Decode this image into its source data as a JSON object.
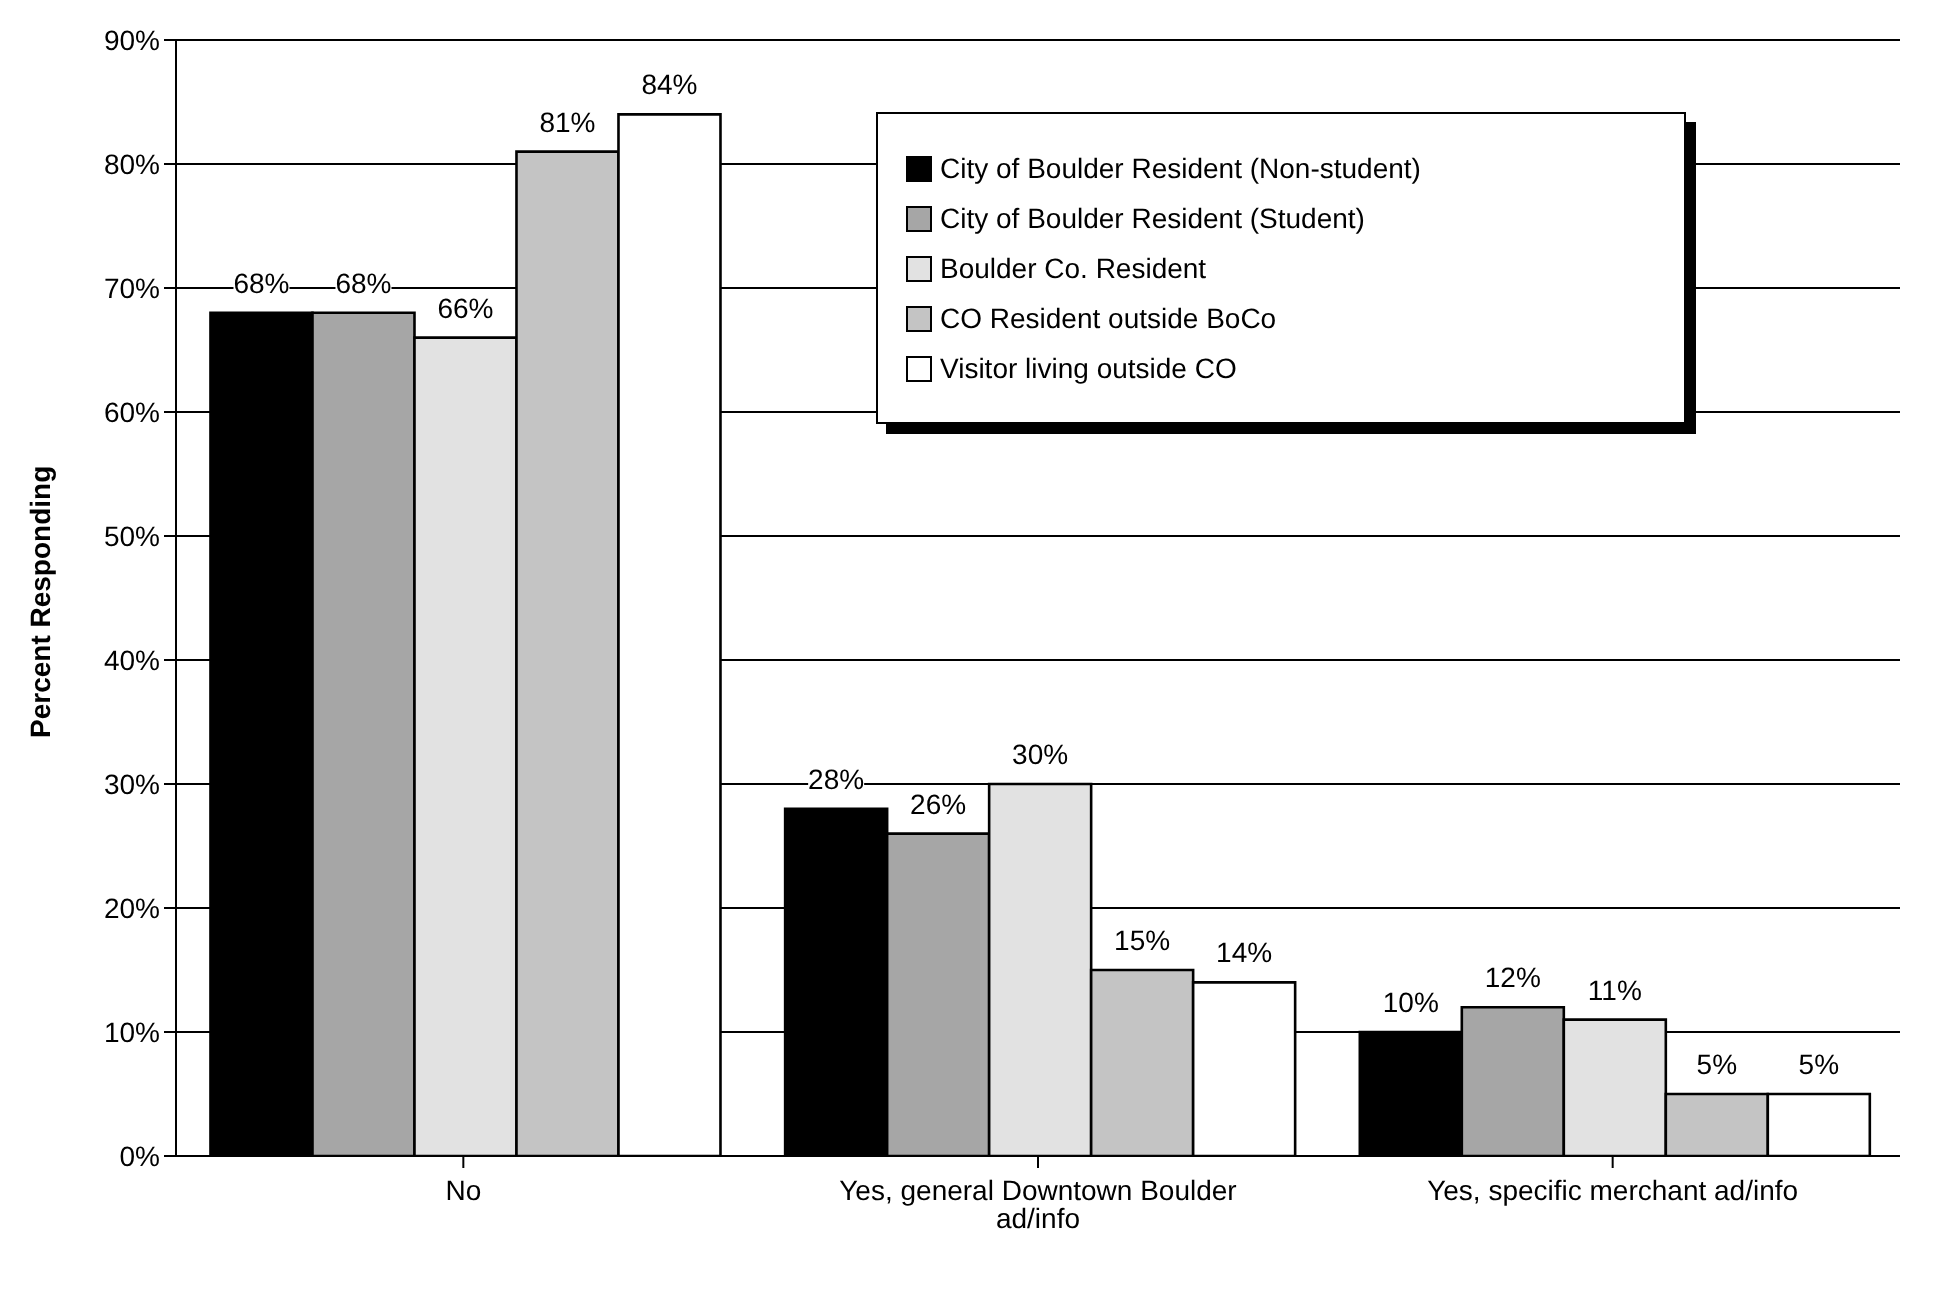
{
  "chart_data": {
    "type": "bar",
    "ylabel": "Percent Responding",
    "categories": [
      "No",
      "Yes, general Downtown Boulder ad/info",
      "Yes, specific merchant ad/info"
    ],
    "series": [
      {
        "name": "City of Boulder Resident (Non-student)",
        "color": "#000000",
        "values": [
          68,
          28,
          10
        ],
        "value_labels": [
          "68%",
          "28%",
          "10%"
        ]
      },
      {
        "name": "City of Boulder Resident (Student)",
        "color": "#a6a6a6",
        "values": [
          68,
          26,
          12
        ],
        "value_labels": [
          "68%",
          "26%",
          "12%"
        ]
      },
      {
        "name": "Boulder Co. Resident",
        "color": "#e2e2e2",
        "values": [
          66,
          30,
          11
        ],
        "value_labels": [
          "66%",
          "30%",
          "11%"
        ]
      },
      {
        "name": "CO Resident outside BoCo",
        "color": "#c4c4c4",
        "values": [
          81,
          15,
          5
        ],
        "value_labels": [
          "81%",
          "15%",
          "5%"
        ]
      },
      {
        "name": "Visitor living outside CO",
        "color": "#ffffff",
        "values": [
          84,
          14,
          5
        ],
        "value_labels": [
          "84%",
          "14%",
          "5%"
        ]
      }
    ],
    "ylim": [
      0,
      90
    ],
    "yticks": [
      {
        "value": 0,
        "label": "0%"
      },
      {
        "value": 10,
        "label": "10%"
      },
      {
        "value": 20,
        "label": "20%"
      },
      {
        "value": 30,
        "label": "30%"
      },
      {
        "value": 40,
        "label": "40%"
      },
      {
        "value": 50,
        "label": "50%"
      },
      {
        "value": 60,
        "label": "60%"
      },
      {
        "value": 70,
        "label": "70%"
      },
      {
        "value": 80,
        "label": "80%"
      },
      {
        "value": 90,
        "label": "90%"
      }
    ],
    "grid": "y",
    "legend": "top right"
  }
}
